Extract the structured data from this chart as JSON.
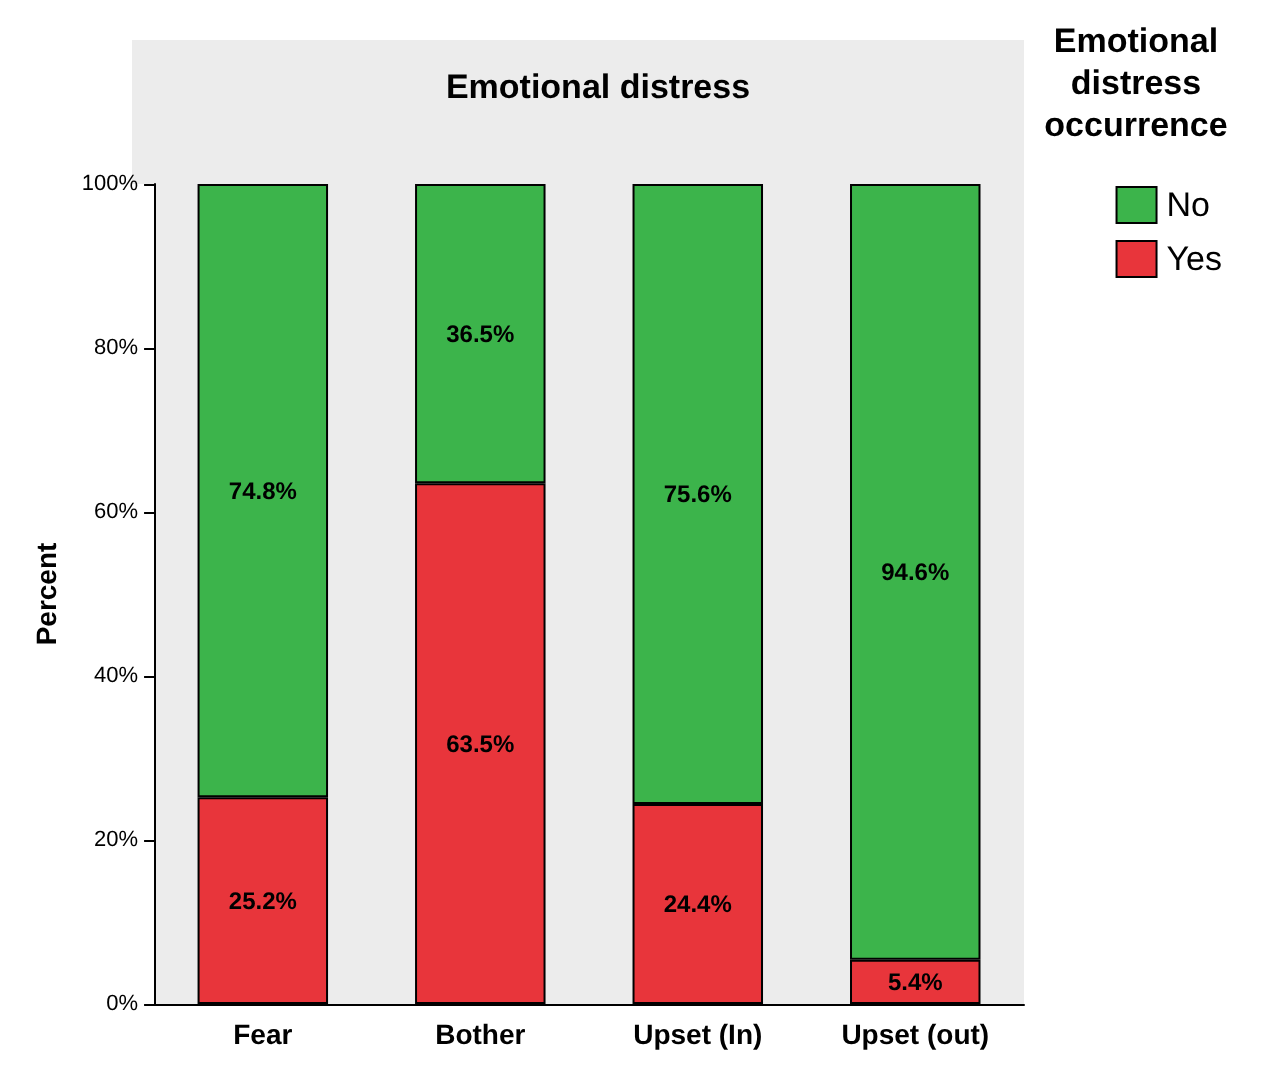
{
  "chart_data": {
    "type": "bar",
    "title": "Emotional distress",
    "ylabel": "Percent",
    "legend_title": "Emotional distress occurrence",
    "categories": [
      "Fear",
      "Bother",
      "Upset (In)",
      "Upset (out)"
    ],
    "stacked": true,
    "series": [
      {
        "name": "Yes",
        "color": "#e8353b",
        "values": [
          25.2,
          63.5,
          24.4,
          5.4
        ],
        "value_labels": [
          "25.2%",
          "63.5%",
          "24.4%",
          "5.4%"
        ]
      },
      {
        "name": "No",
        "color": "#3cb44b",
        "values": [
          74.8,
          36.5,
          75.6,
          94.6
        ],
        "value_labels": [
          "74.8%",
          "36.5%",
          "75.6%",
          "94.6%"
        ]
      }
    ],
    "ylim": [
      0,
      100
    ],
    "yticks": [
      {
        "value": 0,
        "label": "0%"
      },
      {
        "value": 20,
        "label": "20%"
      },
      {
        "value": 40,
        "label": "40%"
      },
      {
        "value": 60,
        "label": "60%"
      },
      {
        "value": 80,
        "label": "80%"
      },
      {
        "value": 100,
        "label": "100%"
      }
    ],
    "grid": false,
    "legend": "right"
  }
}
